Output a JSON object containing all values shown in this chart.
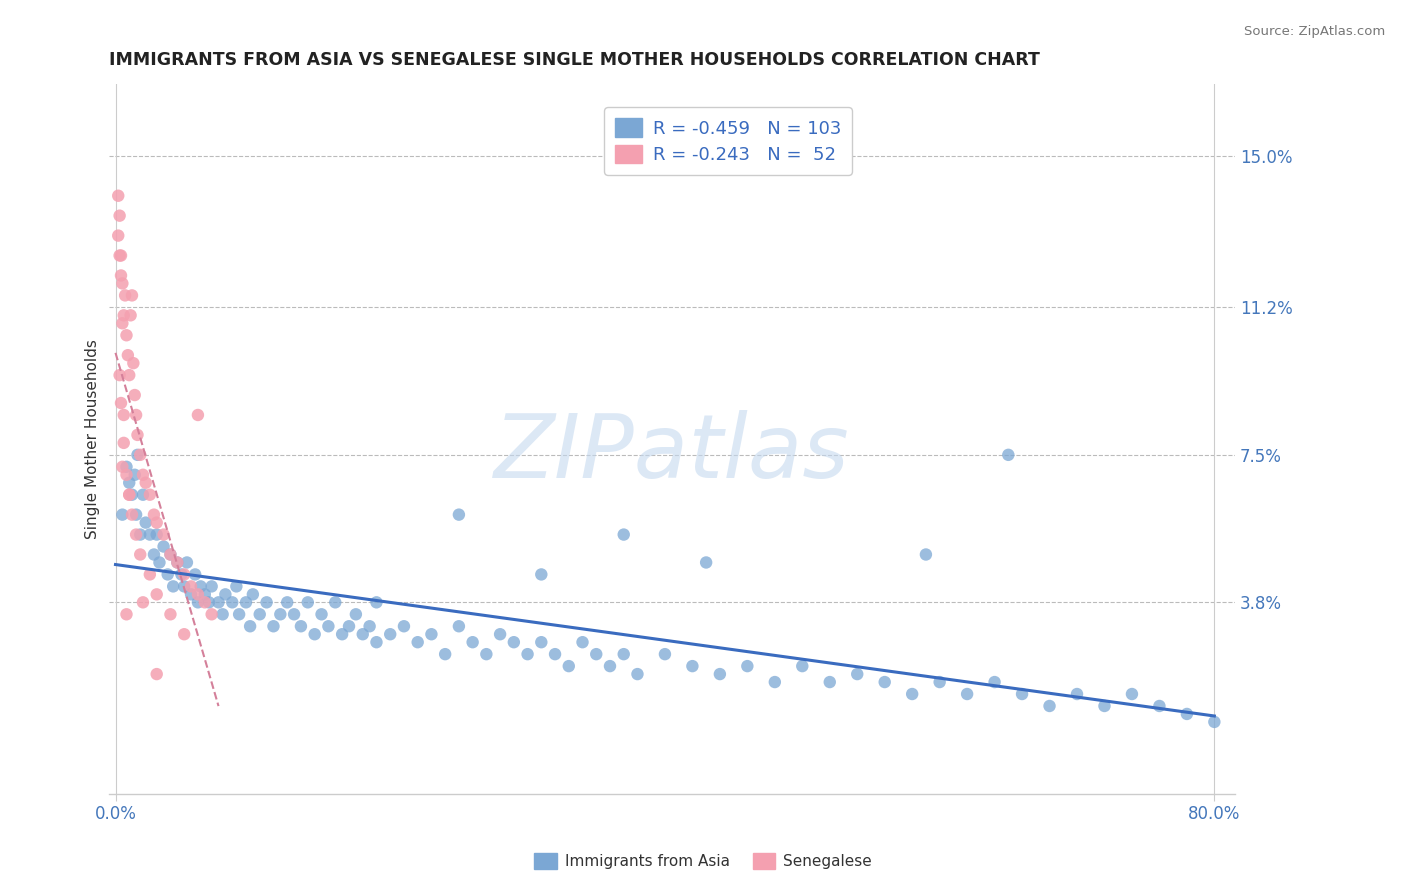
{
  "title": "IMMIGRANTS FROM ASIA VS SENEGALESE SINGLE MOTHER HOUSEHOLDS CORRELATION CHART",
  "source": "Source: ZipAtlas.com",
  "xlabel_blue": "Immigrants from Asia",
  "xlabel_pink": "Senegalese",
  "ylabel": "Single Mother Households",
  "yticks": [
    0.038,
    0.075,
    0.112,
    0.15
  ],
  "ytick_labels": [
    "3.8%",
    "7.5%",
    "11.2%",
    "15.0%"
  ],
  "xlim": [
    -0.005,
    0.815
  ],
  "ylim": [
    -0.01,
    0.168
  ],
  "xtick_positions": [
    0.0,
    0.8
  ],
  "xtick_labels": [
    "0.0%",
    "80.0%"
  ],
  "blue_R": "-0.459",
  "blue_N": "103",
  "pink_R": "-0.243",
  "pink_N": "52",
  "blue_scatter_color": "#7BA7D4",
  "pink_scatter_color": "#F4A0B0",
  "trend_blue_color": "#3A6BBF",
  "trend_pink_color": "#D4809A",
  "axis_label_color": "#4477BB",
  "watermark": "ZIPatlas",
  "watermark_color": "#C5D9EF",
  "legend_text_color": "#3A6BBF",
  "legend_R_color": "#3A6BBF",
  "blue_scatter_x": [
    0.005,
    0.008,
    0.01,
    0.012,
    0.014,
    0.015,
    0.016,
    0.018,
    0.02,
    0.022,
    0.025,
    0.028,
    0.03,
    0.032,
    0.035,
    0.038,
    0.04,
    0.042,
    0.045,
    0.048,
    0.05,
    0.052,
    0.055,
    0.058,
    0.06,
    0.062,
    0.065,
    0.068,
    0.07,
    0.075,
    0.078,
    0.08,
    0.085,
    0.088,
    0.09,
    0.095,
    0.098,
    0.1,
    0.105,
    0.11,
    0.115,
    0.12,
    0.125,
    0.13,
    0.135,
    0.14,
    0.145,
    0.15,
    0.155,
    0.16,
    0.165,
    0.17,
    0.175,
    0.18,
    0.185,
    0.19,
    0.2,
    0.21,
    0.22,
    0.23,
    0.24,
    0.25,
    0.26,
    0.27,
    0.28,
    0.29,
    0.3,
    0.31,
    0.32,
    0.33,
    0.34,
    0.35,
    0.36,
    0.37,
    0.38,
    0.4,
    0.42,
    0.44,
    0.46,
    0.48,
    0.5,
    0.52,
    0.54,
    0.56,
    0.58,
    0.6,
    0.62,
    0.64,
    0.66,
    0.68,
    0.7,
    0.72,
    0.74,
    0.76,
    0.78,
    0.8,
    0.65,
    0.59,
    0.43,
    0.37,
    0.31,
    0.25,
    0.19
  ],
  "blue_scatter_y": [
    0.06,
    0.072,
    0.068,
    0.065,
    0.07,
    0.06,
    0.075,
    0.055,
    0.065,
    0.058,
    0.055,
    0.05,
    0.055,
    0.048,
    0.052,
    0.045,
    0.05,
    0.042,
    0.048,
    0.045,
    0.042,
    0.048,
    0.04,
    0.045,
    0.038,
    0.042,
    0.04,
    0.038,
    0.042,
    0.038,
    0.035,
    0.04,
    0.038,
    0.042,
    0.035,
    0.038,
    0.032,
    0.04,
    0.035,
    0.038,
    0.032,
    0.035,
    0.038,
    0.035,
    0.032,
    0.038,
    0.03,
    0.035,
    0.032,
    0.038,
    0.03,
    0.032,
    0.035,
    0.03,
    0.032,
    0.028,
    0.03,
    0.032,
    0.028,
    0.03,
    0.025,
    0.032,
    0.028,
    0.025,
    0.03,
    0.028,
    0.025,
    0.028,
    0.025,
    0.022,
    0.028,
    0.025,
    0.022,
    0.025,
    0.02,
    0.025,
    0.022,
    0.02,
    0.022,
    0.018,
    0.022,
    0.018,
    0.02,
    0.018,
    0.015,
    0.018,
    0.015,
    0.018,
    0.015,
    0.012,
    0.015,
    0.012,
    0.015,
    0.012,
    0.01,
    0.008,
    0.075,
    0.05,
    0.048,
    0.055,
    0.045,
    0.06,
    0.038
  ],
  "pink_scatter_x": [
    0.002,
    0.003,
    0.004,
    0.005,
    0.006,
    0.007,
    0.008,
    0.009,
    0.01,
    0.011,
    0.012,
    0.013,
    0.014,
    0.015,
    0.016,
    0.018,
    0.02,
    0.022,
    0.025,
    0.028,
    0.03,
    0.035,
    0.04,
    0.045,
    0.05,
    0.055,
    0.06,
    0.065,
    0.07,
    0.005,
    0.003,
    0.004,
    0.006,
    0.008,
    0.01,
    0.012,
    0.015,
    0.018,
    0.025,
    0.03,
    0.04,
    0.05,
    0.002,
    0.003,
    0.004,
    0.005,
    0.006,
    0.008,
    0.01,
    0.02,
    0.03,
    0.06
  ],
  "pink_scatter_y": [
    0.13,
    0.125,
    0.12,
    0.118,
    0.11,
    0.115,
    0.105,
    0.1,
    0.095,
    0.11,
    0.115,
    0.098,
    0.09,
    0.085,
    0.08,
    0.075,
    0.07,
    0.068,
    0.065,
    0.06,
    0.058,
    0.055,
    0.05,
    0.048,
    0.045,
    0.042,
    0.04,
    0.038,
    0.035,
    0.072,
    0.095,
    0.088,
    0.078,
    0.07,
    0.065,
    0.06,
    0.055,
    0.05,
    0.045,
    0.04,
    0.035,
    0.03,
    0.14,
    0.135,
    0.125,
    0.108,
    0.085,
    0.035,
    0.065,
    0.038,
    0.02,
    0.085
  ]
}
